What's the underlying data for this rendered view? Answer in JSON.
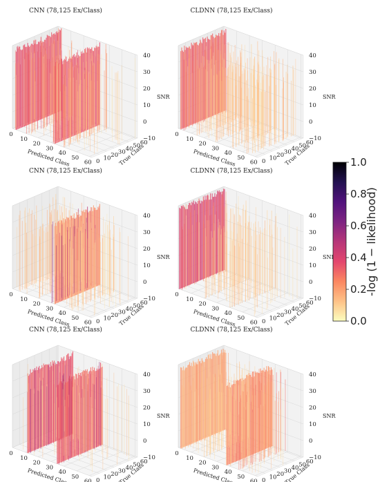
{
  "colorbar": {
    "label": "-log (1 − likelihood)",
    "ticks": [
      "0.0",
      "0.2",
      "0.4",
      "0.6",
      "0.8",
      "1.0"
    ],
    "colors": [
      "#fcfdbf",
      "#fec287",
      "#fb8761",
      "#e3466e",
      "#b63679",
      "#7e2482",
      "#51127c",
      "#221150",
      "#000004"
    ]
  },
  "chart_data": [
    {
      "type": "3d-waterfall",
      "title": "CNN (78,125 Ex/Class)",
      "xlabel": "Predicted Class",
      "ylabel": "True Class",
      "zlabel": "SNR",
      "x_ticks": [
        "0",
        "10",
        "20",
        "30",
        "40",
        "50",
        "60"
      ],
      "y_ticks": [
        "0",
        "10",
        "20",
        "30",
        "40",
        "50",
        "60"
      ],
      "z_ticks": [
        "−10",
        "0",
        "10",
        "20",
        "30",
        "40"
      ],
      "walls": [
        {
          "class": 2,
          "intensity": 0.35
        },
        {
          "class": 12,
          "intensity": 0.3
        },
        {
          "class": 31,
          "intensity": 0.35
        },
        {
          "class": 39,
          "intensity": 0.22
        }
      ],
      "planes": [
        {
          "position": 3,
          "intensity": 0.3
        },
        {
          "position": 33,
          "intensity": 0.3
        }
      ]
    },
    {
      "type": "3d-waterfall",
      "title": "CLDNN (78,125 Ex/Class)",
      "xlabel": "Predicted Class",
      "ylabel": "True Class",
      "zlabel": "SNR",
      "x_ticks": [
        "0",
        "10",
        "20",
        "30",
        "40",
        "50",
        "60"
      ],
      "y_ticks": [
        "0",
        "10",
        "20",
        "30",
        "40",
        "50",
        "60"
      ],
      "z_ticks": [
        "−10",
        "0",
        "10",
        "20",
        "30",
        "40"
      ],
      "walls": [
        {
          "class": 3,
          "intensity": 0.3
        },
        {
          "class": 15,
          "intensity": 0.15
        },
        {
          "class": 28,
          "intensity": 0.15
        },
        {
          "class": 42,
          "intensity": 0.15
        },
        {
          "class": 55,
          "intensity": 0.15
        }
      ],
      "planes": [
        {
          "position": 2,
          "intensity": 0.28
        }
      ]
    },
    {
      "type": "3d-waterfall",
      "title": "CNN (78,125 Ex/Class)",
      "xlabel": "Predicted Class",
      "ylabel": "True Class",
      "zlabel": "SNR",
      "x_ticks": [
        "0",
        "10",
        "20",
        "30",
        "40",
        "50",
        "60"
      ],
      "y_ticks": [
        "0",
        "10",
        "20",
        "30",
        "40",
        "50",
        "60"
      ],
      "z_ticks": [
        "−10",
        "0",
        "10",
        "20",
        "30",
        "40"
      ],
      "walls": [
        {
          "class": 5,
          "intensity": 0.15
        },
        {
          "class": 20,
          "intensity": 0.18
        },
        {
          "class": 31,
          "intensity": 0.5
        },
        {
          "class": 45,
          "intensity": 0.15
        }
      ],
      "planes": [
        {
          "position": 33,
          "intensity": 0.2
        }
      ]
    },
    {
      "type": "3d-waterfall",
      "title": "CLDNN (78,125 Ex/Class)",
      "xlabel": "Predicted Class",
      "ylabel": "True Class",
      "zlabel": "SNR",
      "x_ticks": [
        "0",
        "10",
        "20",
        "30",
        "40",
        "50",
        "60"
      ],
      "y_ticks": [
        "0",
        "10",
        "20",
        "30",
        "40",
        "50",
        "60"
      ],
      "z_ticks": [
        "−10",
        "0",
        "10",
        "20",
        "30",
        "40"
      ],
      "walls": [
        {
          "class": 2,
          "intensity": 0.3
        },
        {
          "class": 20,
          "intensity": 0.15
        },
        {
          "class": 40,
          "intensity": 0.15
        }
      ],
      "planes": [
        {
          "position": 1,
          "intensity": 0.35
        }
      ]
    },
    {
      "type": "3d-waterfall",
      "title": "CNN (78,125 Ex/Class)",
      "xlabel": "Predicted Class",
      "ylabel": "True Class",
      "zlabel": "SNR",
      "x_ticks": [
        "0",
        "10",
        "20",
        "30",
        "40",
        "50",
        "60"
      ],
      "y_ticks": [
        "0",
        "10",
        "20",
        "30",
        "40",
        "50",
        "60"
      ],
      "z_ticks": [
        "−10",
        "0",
        "10",
        "20",
        "30",
        "40"
      ],
      "walls": [
        {
          "class": 12,
          "intensity": 0.55
        },
        {
          "class": 35,
          "intensity": 0.5
        }
      ],
      "planes": [
        {
          "position": 12,
          "intensity": 0.3
        },
        {
          "position": 35,
          "intensity": 0.28
        }
      ]
    },
    {
      "type": "3d-waterfall",
      "title": "CLDNN (78,125 Ex/Class)",
      "xlabel": "Predicted Class",
      "ylabel": "True Class",
      "zlabel": "SNR",
      "x_ticks": [
        "0",
        "10",
        "20",
        "30",
        "40",
        "50",
        "60"
      ],
      "y_ticks": [
        "0",
        "10",
        "20",
        "30",
        "40",
        "50",
        "60"
      ],
      "z_ticks": [
        "−10",
        "0",
        "10",
        "20",
        "30",
        "40"
      ],
      "walls": [
        {
          "class": 3,
          "intensity": 0.2
        },
        {
          "class": 20,
          "intensity": 0.12
        },
        {
          "class": 38,
          "intensity": 0.25
        },
        {
          "class": 47,
          "intensity": 0.3
        }
      ],
      "planes": [
        {
          "position": 2,
          "intensity": 0.15
        },
        {
          "position": 38,
          "intensity": 0.2
        }
      ]
    }
  ]
}
